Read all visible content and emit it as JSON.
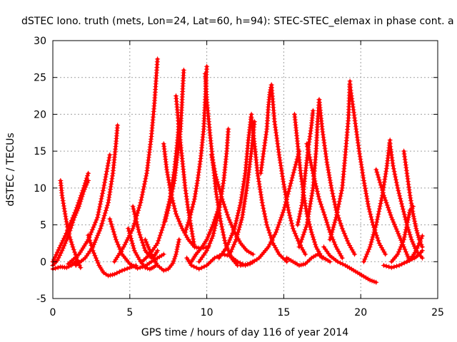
{
  "chart_data": {
    "type": "scatter",
    "title": "dSTEC Iono. truth (mets, Lon=24, Lat=60, h=94): STEC-STEC_elemax in phase cont. a",
    "xlabel": "GPS time / hours of day 116 of year 2014",
    "ylabel": "dSTEC  / TECUs",
    "xlim": [
      0,
      25
    ],
    "ylim": [
      -5,
      30
    ],
    "xticks": [
      0,
      5,
      10,
      15,
      20,
      25
    ],
    "yticks": [
      -5,
      0,
      5,
      10,
      15,
      20,
      25,
      30
    ],
    "grid": true,
    "marker": "plus",
    "color": "#ff0000",
    "series": [
      {
        "x": [
          0.0,
          0.8,
          1.5,
          2.0,
          2.3
        ],
        "y": [
          0.0,
          3.5,
          7.0,
          10.0,
          12.0
        ]
      },
      {
        "x": [
          0.5,
          0.6,
          0.8,
          1.0,
          1.3,
          1.6,
          1.8
        ],
        "y": [
          11.0,
          9.0,
          6.5,
          4.0,
          2.0,
          0.2,
          -0.8
        ]
      },
      {
        "x": [
          0.0,
          0.3,
          0.6,
          1.0,
          1.4,
          1.7,
          2.0,
          2.3
        ],
        "y": [
          -0.5,
          0.2,
          1.5,
          3.5,
          6.0,
          7.5,
          9.5,
          11.0
        ]
      },
      {
        "x": [
          0.0,
          0.5,
          0.9,
          1.2,
          1.5
        ],
        "y": [
          -1.0,
          -0.7,
          -0.8,
          -0.5,
          0.0
        ]
      },
      {
        "x": [
          2.3,
          2.6,
          3.0,
          3.3,
          3.6,
          4.0,
          4.5,
          5.0,
          5.4
        ],
        "y": [
          3.6,
          1.5,
          -0.5,
          -1.5,
          -1.9,
          -1.7,
          -1.2,
          -0.8,
          -0.5
        ]
      },
      {
        "x": [
          1.5,
          2.1,
          2.6,
          3.1,
          3.6,
          3.9,
          4.1,
          4.2
        ],
        "y": [
          -0.5,
          0.5,
          2.0,
          4.5,
          8.0,
          12.0,
          16.0,
          18.5
        ]
      },
      {
        "x": [
          1.0,
          1.7,
          2.3,
          2.9,
          3.3,
          3.7
        ],
        "y": [
          -0.3,
          1.0,
          3.0,
          6.0,
          10.0,
          14.5
        ]
      },
      {
        "x": [
          3.7,
          4.1,
          4.5,
          5.0,
          5.5,
          6.0,
          6.4,
          6.8,
          7.2
        ],
        "y": [
          5.8,
          3.0,
          1.0,
          -0.3,
          -0.9,
          -0.6,
          0.0,
          0.5,
          1.0
        ]
      },
      {
        "x": [
          4.9,
          5.3,
          5.7,
          6.0,
          6.3,
          6.5,
          6.7
        ],
        "y": [
          4.5,
          1.5,
          0.0,
          -0.8,
          -1.0,
          -0.8,
          -0.5
        ]
      },
      {
        "x": [
          5.2,
          5.6,
          6.0,
          6.4,
          6.6,
          6.8
        ],
        "y": [
          7.5,
          4.0,
          1.5,
          0.5,
          0.8,
          1.5
        ]
      },
      {
        "x": [
          4.0,
          4.6,
          5.2,
          5.7,
          6.1,
          6.4,
          6.6,
          6.8
        ],
        "y": [
          0.0,
          2.0,
          4.5,
          8.0,
          12.0,
          17.0,
          21.5,
          27.5
        ]
      },
      {
        "x": [
          6.0,
          6.4,
          6.8,
          7.2,
          7.5,
          7.8,
          8.0,
          8.2
        ],
        "y": [
          3.0,
          1.0,
          -0.5,
          -1.2,
          -1.0,
          -0.2,
          1.0,
          3.0
        ]
      },
      {
        "x": [
          7.2,
          7.4,
          7.7,
          8.0,
          8.4,
          8.8,
          9.2,
          9.6,
          10.1
        ],
        "y": [
          16.0,
          12.5,
          9.0,
          6.5,
          4.5,
          3.0,
          2.0,
          1.8,
          2.0
        ]
      },
      {
        "x": [
          7.3,
          7.6,
          7.9,
          8.1,
          8.3,
          8.4,
          8.5
        ],
        "y": [
          5.5,
          8.0,
          11.0,
          14.5,
          18.0,
          22.0,
          26.0
        ]
      },
      {
        "x": [
          5.8,
          6.3,
          6.8,
          7.2,
          7.6,
          7.9,
          8.1,
          8.2
        ],
        "y": [
          0.0,
          1.0,
          2.5,
          5.0,
          8.5,
          12.5,
          16.5,
          19.0
        ]
      },
      {
        "x": [
          8.0,
          8.2,
          8.4,
          8.6,
          8.8,
          9.0,
          9.2
        ],
        "y": [
          22.5,
          18.0,
          14.0,
          10.0,
          7.0,
          4.5,
          2.0
        ]
      },
      {
        "x": [
          8.6,
          8.9,
          9.2,
          9.4,
          9.6,
          9.8,
          9.9,
          10.0
        ],
        "y": [
          4.0,
          6.0,
          8.5,
          11.0,
          14.0,
          18.0,
          22.0,
          26.5
        ]
      },
      {
        "x": [
          9.9,
          10.0,
          10.2,
          10.4,
          10.6,
          10.9,
          11.2,
          11.6,
          12.0
        ],
        "y": [
          25.5,
          22.0,
          17.5,
          13.5,
          9.5,
          5.5,
          2.5,
          0.5,
          -0.5
        ]
      },
      {
        "x": [
          9.0,
          9.3,
          9.7,
          10.0,
          10.4,
          10.8
        ],
        "y": [
          0.0,
          1.0,
          2.0,
          3.0,
          5.0,
          7.5
        ]
      },
      {
        "x": [
          8.7,
          9.0,
          9.5,
          10.0,
          10.5,
          11.0,
          11.5,
          12.0,
          12.5,
          13.0
        ],
        "y": [
          0.5,
          -0.5,
          -1.0,
          -0.5,
          0.5,
          1.0,
          0.8,
          0.0,
          -0.5,
          0.0
        ]
      },
      {
        "x": [
          9.5,
          10.0,
          10.4,
          10.8,
          11.1,
          11.3,
          11.4
        ],
        "y": [
          0.0,
          1.5,
          3.5,
          7.0,
          11.0,
          15.0,
          18.0
        ]
      },
      {
        "x": [
          10.3,
          10.6,
          11.0,
          11.4,
          11.8,
          12.2,
          12.6,
          13.0
        ],
        "y": [
          14.5,
          11.5,
          8.5,
          6.0,
          4.0,
          2.5,
          1.5,
          1.0
        ]
      },
      {
        "x": [
          10.8,
          11.3,
          11.8,
          12.2,
          12.5,
          12.7,
          12.9
        ],
        "y": [
          0.5,
          2.0,
          4.5,
          8.0,
          12.0,
          16.5,
          20.0
        ]
      },
      {
        "x": [
          11.5,
          11.9,
          12.3,
          12.6,
          12.9,
          13.1
        ],
        "y": [
          1.0,
          3.0,
          6.0,
          10.0,
          15.0,
          19.0
        ]
      },
      {
        "x": [
          12.9,
          13.1,
          13.3,
          13.6,
          13.9,
          14.3,
          14.7,
          15.2
        ],
        "y": [
          19.5,
          16.0,
          12.0,
          8.0,
          5.0,
          2.5,
          1.0,
          0.0
        ]
      },
      {
        "x": [
          13.5,
          13.7,
          13.9,
          14.0,
          14.1,
          14.2
        ],
        "y": [
          12.0,
          15.0,
          18.0,
          21.0,
          23.0,
          24.0
        ]
      },
      {
        "x": [
          14.2,
          14.4,
          14.7,
          15.0,
          15.3,
          15.6,
          16.0,
          16.4
        ],
        "y": [
          24.0,
          19.0,
          14.5,
          10.5,
          7.0,
          4.5,
          2.5,
          1.0
        ]
      },
      {
        "x": [
          12.2,
          12.8,
          13.4,
          14.0,
          14.5,
          15.0,
          15.5,
          16.0
        ],
        "y": [
          -0.5,
          -0.3,
          0.5,
          2.0,
          4.0,
          7.0,
          11.0,
          15.0
        ]
      },
      {
        "x": [
          15.2,
          15.6,
          16.0,
          16.4,
          16.8,
          17.2,
          17.6,
          18.0
        ],
        "y": [
          0.5,
          0.0,
          -0.5,
          -0.3,
          0.5,
          1.0,
          0.5,
          0.0
        ]
      },
      {
        "x": [
          15.7,
          15.9,
          16.1,
          16.3,
          16.5,
          16.8,
          17.1,
          17.5
        ],
        "y": [
          20.0,
          16.0,
          12.0,
          9.0,
          6.5,
          4.0,
          2.0,
          0.5
        ]
      },
      {
        "x": [
          15.9,
          16.2,
          16.4,
          16.6,
          16.8,
          16.9
        ],
        "y": [
          5.0,
          8.0,
          12.0,
          15.5,
          18.5,
          20.5
        ]
      },
      {
        "x": [
          16.5,
          16.9,
          17.3,
          17.7,
          18.0,
          18.4,
          18.8
        ],
        "y": [
          16.0,
          12.0,
          8.5,
          6.0,
          4.0,
          2.0,
          0.5
        ]
      },
      {
        "x": [
          16.0,
          16.5,
          16.9,
          17.1,
          17.2,
          17.3
        ],
        "y": [
          2.0,
          5.0,
          10.0,
          15.0,
          19.0,
          22.0
        ]
      },
      {
        "x": [
          17.3,
          17.5,
          17.8,
          18.1,
          18.4,
          18.8,
          19.2,
          19.6
        ],
        "y": [
          22.0,
          18.0,
          13.5,
          10.0,
          7.0,
          4.5,
          2.5,
          1.0
        ]
      },
      {
        "x": [
          17.6,
          18.0,
          18.5,
          19.0,
          19.4,
          19.8,
          20.2,
          20.6,
          21.0
        ],
        "y": [
          2.0,
          0.8,
          0.0,
          -0.5,
          -1.0,
          -1.5,
          -2.0,
          -2.5,
          -2.8
        ]
      },
      {
        "x": [
          18.0,
          18.4,
          18.8,
          19.0,
          19.2,
          19.3
        ],
        "y": [
          3.0,
          6.0,
          10.0,
          14.5,
          19.5,
          24.5
        ]
      },
      {
        "x": [
          19.3,
          19.6,
          19.9,
          20.2,
          20.5,
          20.8,
          21.2,
          21.6
        ],
        "y": [
          24.0,
          19.5,
          15.0,
          11.0,
          7.5,
          5.0,
          2.5,
          1.0
        ]
      },
      {
        "x": [
          20.2,
          20.6,
          21.0,
          21.4,
          21.7,
          21.9
        ],
        "y": [
          0.0,
          2.0,
          5.0,
          9.0,
          13.0,
          16.5
        ]
      },
      {
        "x": [
          21.9,
          22.1,
          22.4,
          22.7,
          23.0,
          23.3,
          23.6,
          24.0
        ],
        "y": [
          16.0,
          13.0,
          10.0,
          7.5,
          5.0,
          3.0,
          1.5,
          0.5
        ]
      },
      {
        "x": [
          21.0,
          21.5,
          22.0,
          22.5,
          22.8,
          23.0,
          23.1
        ],
        "y": [
          12.5,
          9.0,
          6.0,
          3.5,
          2.0,
          1.0,
          0.5
        ]
      },
      {
        "x": [
          22.8,
          23.0,
          23.2,
          23.4,
          23.6,
          23.8,
          24.0
        ],
        "y": [
          15.0,
          12.0,
          9.0,
          6.5,
          4.5,
          3.0,
          2.0
        ]
      },
      {
        "x": [
          22.0,
          22.4,
          22.8,
          23.0,
          23.2,
          23.4
        ],
        "y": [
          0.0,
          1.0,
          3.0,
          5.0,
          7.0,
          7.5
        ]
      },
      {
        "x": [
          21.5,
          22.0,
          22.5,
          23.0,
          23.5,
          23.8,
          24.0
        ],
        "y": [
          -0.5,
          -0.8,
          -0.5,
          0.0,
          0.5,
          1.0,
          1.5
        ]
      },
      {
        "x": [
          23.0,
          23.3,
          23.6,
          23.8,
          24.0
        ],
        "y": [
          0.0,
          0.5,
          1.5,
          2.5,
          3.5
        ]
      }
    ]
  }
}
